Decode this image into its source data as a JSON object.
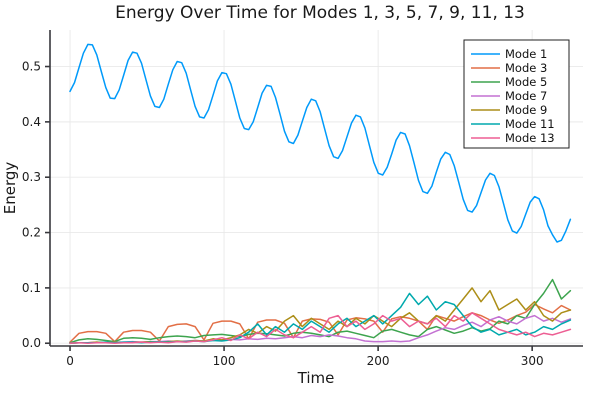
{
  "chart_data": {
    "type": "line",
    "title": "Energy Over Time for Modes 1, 3, 5, 7, 9, 11, 13",
    "xlabel": "Time",
    "ylabel": "Energy",
    "xlim": [
      -13,
      333
    ],
    "ylim": [
      -0.005,
      0.566
    ],
    "x_ticks": [
      0,
      100,
      200,
      300
    ],
    "x_tick_labels": [
      "0",
      "100",
      "200",
      "300"
    ],
    "y_ticks": [
      0.0,
      0.1,
      0.2,
      0.3,
      0.4,
      0.5
    ],
    "y_tick_labels": [
      "0.0",
      "0.1",
      "0.2",
      "0.3",
      "0.4",
      "0.5"
    ],
    "grid": true,
    "legend_position": "top-right",
    "axis_color": "#38383d",
    "grid_color": "#e9e9e9",
    "series": [
      {
        "name": "Mode 1",
        "color": "#009AFA",
        "x0": 0,
        "dx": 2.9,
        "values": [
          0.455,
          0.471,
          0.498,
          0.524,
          0.54,
          0.539,
          0.521,
          0.491,
          0.462,
          0.443,
          0.442,
          0.458,
          0.484,
          0.511,
          0.526,
          0.524,
          0.506,
          0.476,
          0.447,
          0.428,
          0.426,
          0.441,
          0.468,
          0.494,
          0.509,
          0.507,
          0.488,
          0.458,
          0.428,
          0.409,
          0.407,
          0.422,
          0.448,
          0.474,
          0.489,
          0.487,
          0.468,
          0.438,
          0.407,
          0.388,
          0.386,
          0.4,
          0.426,
          0.452,
          0.466,
          0.464,
          0.444,
          0.414,
          0.383,
          0.364,
          0.361,
          0.376,
          0.401,
          0.426,
          0.441,
          0.438,
          0.418,
          0.387,
          0.357,
          0.337,
          0.334,
          0.348,
          0.373,
          0.398,
          0.412,
          0.409,
          0.389,
          0.358,
          0.327,
          0.307,
          0.304,
          0.318,
          0.342,
          0.367,
          0.381,
          0.378,
          0.357,
          0.326,
          0.294,
          0.274,
          0.271,
          0.284,
          0.309,
          0.333,
          0.345,
          0.341,
          0.321,
          0.291,
          0.26,
          0.24,
          0.237,
          0.249,
          0.272,
          0.295,
          0.307,
          0.303,
          0.283,
          0.253,
          0.223,
          0.203,
          0.199,
          0.211,
          0.233,
          0.255,
          0.265,
          0.261,
          0.241,
          0.212,
          0.196,
          0.183,
          0.186,
          0.203,
          0.224
        ]
      },
      {
        "name": "Mode 3",
        "color": "#E26F46",
        "x0": 0,
        "dx": 5.8,
        "values": [
          0.002,
          0.018,
          0.021,
          0.021,
          0.018,
          0.003,
          0.02,
          0.023,
          0.023,
          0.02,
          0.004,
          0.03,
          0.034,
          0.035,
          0.03,
          0.006,
          0.036,
          0.04,
          0.04,
          0.035,
          0.008,
          0.038,
          0.042,
          0.042,
          0.036,
          0.01,
          0.04,
          0.044,
          0.043,
          0.038,
          0.015,
          0.042,
          0.046,
          0.044,
          0.04,
          0.02,
          0.044,
          0.048,
          0.045,
          0.04,
          0.025,
          0.05,
          0.045,
          0.04,
          0.048,
          0.055,
          0.05,
          0.042,
          0.036,
          0.042,
          0.05,
          0.056,
          0.07,
          0.062,
          0.055,
          0.068,
          0.06
        ]
      },
      {
        "name": "Mode 5",
        "color": "#3DA44E",
        "x0": 0,
        "dx": 5.8,
        "values": [
          0.001,
          0.006,
          0.008,
          0.007,
          0.005,
          0.003,
          0.009,
          0.01,
          0.009,
          0.007,
          0.01,
          0.012,
          0.013,
          0.012,
          0.01,
          0.014,
          0.015,
          0.016,
          0.014,
          0.012,
          0.016,
          0.018,
          0.017,
          0.015,
          0.013,
          0.018,
          0.02,
          0.018,
          0.015,
          0.012,
          0.02,
          0.022,
          0.018,
          0.014,
          0.01,
          0.022,
          0.025,
          0.02,
          0.015,
          0.012,
          0.025,
          0.03,
          0.024,
          0.018,
          0.022,
          0.028,
          0.022,
          0.026,
          0.04,
          0.035,
          0.05,
          0.045,
          0.07,
          0.09,
          0.115,
          0.08,
          0.095
        ]
      },
      {
        "name": "Mode 7",
        "color": "#C371D2",
        "x0": 0,
        "dx": 5.8,
        "values": [
          0.0,
          0.001,
          0.001,
          0.002,
          0.001,
          0.002,
          0.002,
          0.003,
          0.002,
          0.003,
          0.003,
          0.004,
          0.003,
          0.004,
          0.005,
          0.004,
          0.006,
          0.005,
          0.007,
          0.006,
          0.008,
          0.007,
          0.009,
          0.008,
          0.01,
          0.012,
          0.01,
          0.014,
          0.012,
          0.015,
          0.013,
          0.01,
          0.008,
          0.004,
          0.003,
          0.003,
          0.004,
          0.003,
          0.004,
          0.01,
          0.015,
          0.022,
          0.028,
          0.025,
          0.032,
          0.038,
          0.03,
          0.042,
          0.048,
          0.04,
          0.035,
          0.045,
          0.05,
          0.04,
          0.045,
          0.038,
          0.044
        ]
      },
      {
        "name": "Mode 9",
        "color": "#AC8E18",
        "x0": 0,
        "dx": 5.8,
        "values": [
          0.0,
          0.001,
          0.001,
          0.002,
          0.001,
          0.002,
          0.001,
          0.002,
          0.002,
          0.003,
          0.002,
          0.003,
          0.004,
          0.003,
          0.005,
          0.004,
          0.008,
          0.006,
          0.01,
          0.015,
          0.025,
          0.018,
          0.03,
          0.022,
          0.04,
          0.05,
          0.03,
          0.045,
          0.035,
          0.025,
          0.04,
          0.03,
          0.045,
          0.035,
          0.05,
          0.04,
          0.03,
          0.045,
          0.055,
          0.04,
          0.035,
          0.05,
          0.04,
          0.06,
          0.08,
          0.1,
          0.075,
          0.095,
          0.06,
          0.07,
          0.08,
          0.06,
          0.075,
          0.05,
          0.04,
          0.055,
          0.06
        ]
      },
      {
        "name": "Mode 11",
        "color": "#00A9AD",
        "x0": 0,
        "dx": 5.8,
        "values": [
          0.0,
          0.001,
          0.001,
          0.001,
          0.002,
          0.001,
          0.002,
          0.002,
          0.001,
          0.002,
          0.003,
          0.002,
          0.003,
          0.003,
          0.004,
          0.003,
          0.005,
          0.004,
          0.006,
          0.01,
          0.02,
          0.035,
          0.015,
          0.03,
          0.02,
          0.035,
          0.025,
          0.04,
          0.03,
          0.02,
          0.035,
          0.045,
          0.03,
          0.04,
          0.05,
          0.035,
          0.05,
          0.065,
          0.09,
          0.07,
          0.085,
          0.06,
          0.075,
          0.07,
          0.05,
          0.03,
          0.02,
          0.025,
          0.015,
          0.02,
          0.025,
          0.015,
          0.02,
          0.03,
          0.025,
          0.035,
          0.042
        ]
      },
      {
        "name": "Mode 13",
        "color": "#ED5E93",
        "x0": 0,
        "dx": 5.8,
        "values": [
          0.0,
          0.001,
          0.0,
          0.001,
          0.001,
          0.0,
          0.001,
          0.001,
          0.002,
          0.001,
          0.002,
          0.001,
          0.003,
          0.002,
          0.004,
          0.003,
          0.006,
          0.01,
          0.005,
          0.015,
          0.008,
          0.02,
          0.012,
          0.025,
          0.015,
          0.01,
          0.02,
          0.03,
          0.02,
          0.045,
          0.05,
          0.03,
          0.04,
          0.025,
          0.035,
          0.05,
          0.04,
          0.045,
          0.03,
          0.04,
          0.035,
          0.045,
          0.03,
          0.05,
          0.04,
          0.055,
          0.045,
          0.035,
          0.025,
          0.02,
          0.015,
          0.02,
          0.012,
          0.018,
          0.015,
          0.02,
          0.025
        ]
      }
    ]
  }
}
